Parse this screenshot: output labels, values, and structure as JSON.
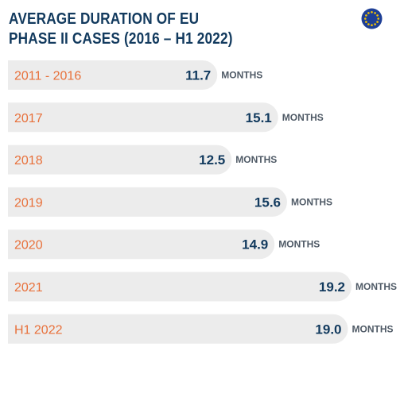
{
  "title_lines": [
    "AVERAGE DURATION OF EU",
    "PHASE II CASES (2016 – H1 2022)"
  ],
  "flag_icon": "eu-flag-icon",
  "colors": {
    "title": "#123a5e",
    "category": "#e8703a",
    "value": "#123a5e",
    "unit": "#4f5a66",
    "bar": "#ececec",
    "flag_blue": "#1e3f96",
    "flag_star": "#f5c400"
  },
  "chart_data": {
    "type": "bar",
    "orientation": "horizontal",
    "title": "AVERAGE DURATION OF EU PHASE II CASES (2016 – H1 2022)",
    "categories": [
      "2011 - 2016",
      "2017",
      "2018",
      "2019",
      "2020",
      "2021",
      "H1 2022"
    ],
    "values": [
      11.7,
      15.1,
      12.5,
      15.6,
      14.9,
      19.2,
      19.0
    ],
    "value_labels": [
      "11.7",
      "15.1",
      "12.5",
      "15.6",
      "14.9",
      "19.2",
      "19.0"
    ],
    "unit": "MONTHS",
    "xlabel": "",
    "ylabel": "",
    "grid": false,
    "legend": "none"
  }
}
